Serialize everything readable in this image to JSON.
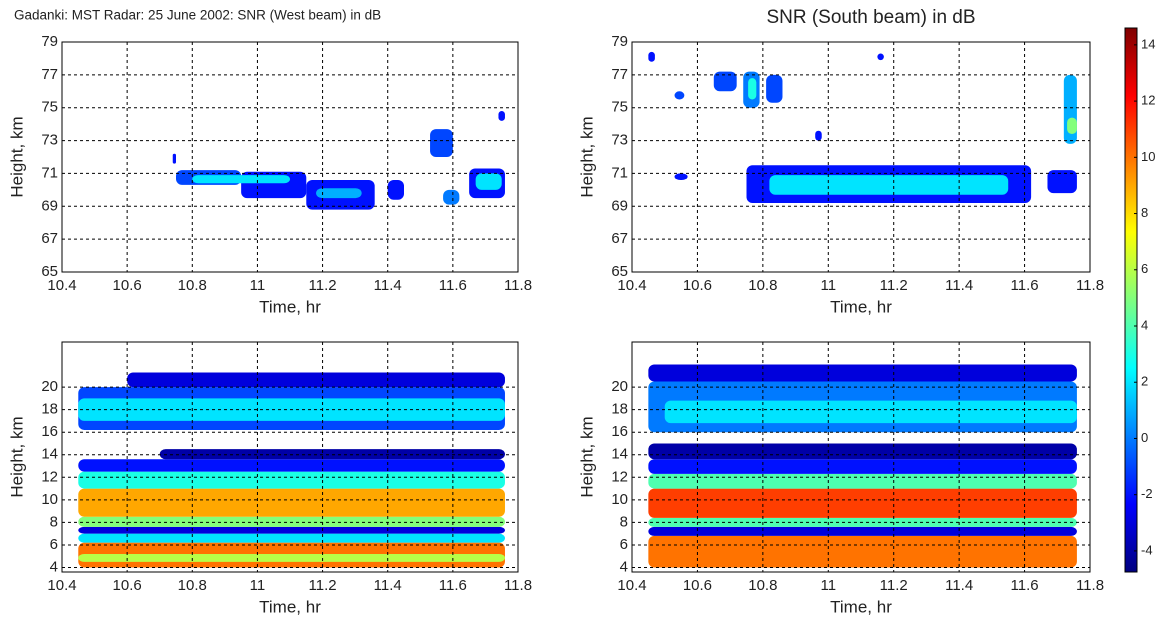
{
  "chart_data": [
    {
      "type": "contour",
      "title": "Gadanki: MST Radar: 25 June 2002: SNR (West beam) in dB",
      "xlabel": "Time, hr",
      "ylabel": "Height, km",
      "xlim": [
        10.4,
        11.8
      ],
      "xticks": [
        10.4,
        10.6,
        10.8,
        11,
        11.2,
        11.4,
        11.6,
        11.8
      ],
      "ylim": [
        65,
        79
      ],
      "yticks": [
        65,
        67,
        69,
        71,
        73,
        75,
        77,
        79
      ],
      "grid": true,
      "regions": [
        {
          "x": [
            10.74,
            10.75
          ],
          "y": [
            71.6,
            72.2
          ],
          "snr": -2
        },
        {
          "x": [
            10.75,
            10.95
          ],
          "y": [
            70.3,
            71.2
          ],
          "snr": -1
        },
        {
          "x": [
            10.95,
            11.15
          ],
          "y": [
            69.5,
            71.1
          ],
          "snr": -2
        },
        {
          "x": [
            11.15,
            11.36
          ],
          "y": [
            68.8,
            70.6
          ],
          "snr": -2
        },
        {
          "x": [
            10.8,
            11.1
          ],
          "y": [
            70.4,
            70.9
          ],
          "snr": 2
        },
        {
          "x": [
            11.18,
            11.32
          ],
          "y": [
            69.5,
            70.1
          ],
          "snr": 1
        },
        {
          "x": [
            11.4,
            11.45
          ],
          "y": [
            69.4,
            70.6
          ],
          "snr": -2
        },
        {
          "x": [
            11.53,
            11.6
          ],
          "y": [
            72,
            73.7
          ],
          "snr": -1
        },
        {
          "x": [
            11.57,
            11.62
          ],
          "y": [
            69.1,
            70
          ],
          "snr": 0
        },
        {
          "x": [
            11.65,
            11.76
          ],
          "y": [
            69.5,
            71.3
          ],
          "snr": -2
        },
        {
          "x": [
            11.67,
            11.75
          ],
          "y": [
            70,
            71
          ],
          "snr": 2
        },
        {
          "x": [
            11.74,
            11.76
          ],
          "y": [
            74.2,
            74.8
          ],
          "snr": -2
        }
      ]
    },
    {
      "type": "contour",
      "title": "SNR (South beam) in dB",
      "xlabel": "Time, hr",
      "ylabel": "Height, km",
      "xlim": [
        10.4,
        11.8
      ],
      "xticks": [
        10.4,
        10.6,
        10.8,
        11,
        11.2,
        11.4,
        11.6,
        11.8
      ],
      "ylim": [
        65,
        79
      ],
      "yticks": [
        65,
        67,
        69,
        71,
        73,
        75,
        77,
        79
      ],
      "grid": true,
      "regions": [
        {
          "x": [
            10.45,
            10.47
          ],
          "y": [
            77.8,
            78.4
          ],
          "snr": -2
        },
        {
          "x": [
            10.53,
            10.56
          ],
          "y": [
            75.5,
            76
          ],
          "snr": -1
        },
        {
          "x": [
            10.65,
            10.72
          ],
          "y": [
            76,
            77.2
          ],
          "snr": -1
        },
        {
          "x": [
            10.74,
            10.79
          ],
          "y": [
            75,
            77.2
          ],
          "snr": 0
        },
        {
          "x": [
            10.755,
            10.78
          ],
          "y": [
            75.5,
            76.8
          ],
          "snr": 3
        },
        {
          "x": [
            10.81,
            10.86
          ],
          "y": [
            75.3,
            77
          ],
          "snr": -1
        },
        {
          "x": [
            10.96,
            10.98
          ],
          "y": [
            73,
            73.6
          ],
          "snr": -2
        },
        {
          "x": [
            11.15,
            11.17
          ],
          "y": [
            77.9,
            78.3
          ],
          "snr": -2
        },
        {
          "x": [
            10.53,
            10.57
          ],
          "y": [
            70.6,
            71
          ],
          "snr": -2
        },
        {
          "x": [
            10.75,
            11.62
          ],
          "y": [
            69.2,
            71.5
          ],
          "snr": -2
        },
        {
          "x": [
            10.82,
            11.55
          ],
          "y": [
            69.7,
            70.9
          ],
          "snr": 2
        },
        {
          "x": [
            11.67,
            11.76
          ],
          "y": [
            69.8,
            71.2
          ],
          "snr": -2
        },
        {
          "x": [
            11.72,
            11.76
          ],
          "y": [
            72.8,
            77
          ],
          "snr": 1
        },
        {
          "x": [
            11.73,
            11.76
          ],
          "y": [
            73.4,
            74.4
          ],
          "snr": 5
        }
      ]
    },
    {
      "type": "contour",
      "xlabel": "Time, hr",
      "ylabel": "Height, km",
      "xlim": [
        10.4,
        11.8
      ],
      "xticks": [
        10.4,
        10.6,
        10.8,
        11,
        11.2,
        11.4,
        11.6,
        11.8
      ],
      "ylim": [
        3.6,
        24
      ],
      "yticks": [
        4,
        6,
        8,
        10,
        12,
        14,
        16,
        18,
        20
      ],
      "grid": true,
      "regions": [
        {
          "x": [
            10.45,
            11.76
          ],
          "y": [
            4,
            6.2
          ],
          "snr": 10
        },
        {
          "x": [
            10.45,
            11.76
          ],
          "y": [
            4.5,
            5.2
          ],
          "snr": 6
        },
        {
          "x": [
            10.45,
            11.76
          ],
          "y": [
            6.2,
            7
          ],
          "snr": 2
        },
        {
          "x": [
            10.45,
            11.76
          ],
          "y": [
            7,
            7.6
          ],
          "snr": -3
        },
        {
          "x": [
            10.45,
            11.76
          ],
          "y": [
            7.6,
            8.5
          ],
          "snr": 5
        },
        {
          "x": [
            10.45,
            11.76
          ],
          "y": [
            8.5,
            11
          ],
          "snr": 9
        },
        {
          "x": [
            10.45,
            11.76
          ],
          "y": [
            11,
            12.5
          ],
          "snr": 3
        },
        {
          "x": [
            10.45,
            11.76
          ],
          "y": [
            12.5,
            13.6
          ],
          "snr": -2
        },
        {
          "x": [
            10.7,
            11.76
          ],
          "y": [
            13.6,
            14.5
          ],
          "snr": -4
        },
        {
          "x": [
            10.45,
            11.76
          ],
          "y": [
            16.2,
            20
          ],
          "snr": -1
        },
        {
          "x": [
            10.45,
            11.76
          ],
          "y": [
            17,
            19
          ],
          "snr": 2
        },
        {
          "x": [
            10.6,
            11.76
          ],
          "y": [
            20,
            21.3
          ],
          "snr": -3
        }
      ]
    },
    {
      "type": "contour",
      "xlabel": "Time, hr",
      "ylabel": "Height, km",
      "xlim": [
        10.4,
        11.8
      ],
      "xticks": [
        10.4,
        10.6,
        10.8,
        11,
        11.2,
        11.4,
        11.6,
        11.8
      ],
      "ylim": [
        3.6,
        24
      ],
      "yticks": [
        4,
        6,
        8,
        10,
        12,
        14,
        16,
        18,
        20
      ],
      "grid": true,
      "regions": [
        {
          "x": [
            10.45,
            11.76
          ],
          "y": [
            4,
            6.8
          ],
          "snr": 10
        },
        {
          "x": [
            10.45,
            11.76
          ],
          "y": [
            6.8,
            7.6
          ],
          "snr": -3
        },
        {
          "x": [
            10.45,
            11.76
          ],
          "y": [
            7.6,
            8.4
          ],
          "snr": 4
        },
        {
          "x": [
            10.45,
            11.76
          ],
          "y": [
            8.4,
            11
          ],
          "snr": 11
        },
        {
          "x": [
            10.45,
            11.76
          ],
          "y": [
            11,
            12.3
          ],
          "snr": 4
        },
        {
          "x": [
            10.45,
            11.76
          ],
          "y": [
            12.3,
            13.6
          ],
          "snr": -2
        },
        {
          "x": [
            10.45,
            11.76
          ],
          "y": [
            13.6,
            15
          ],
          "snr": -4
        },
        {
          "x": [
            10.45,
            11.76
          ],
          "y": [
            16,
            20.5
          ],
          "snr": 0
        },
        {
          "x": [
            10.5,
            11.76
          ],
          "y": [
            16.8,
            18.8
          ],
          "snr": 2
        },
        {
          "x": [
            10.45,
            11.76
          ],
          "y": [
            20.5,
            22
          ],
          "snr": -3
        }
      ]
    },
    {
      "type": "colorbar",
      "clim": [
        -4.75,
        14.6
      ],
      "ticks": [
        -4,
        -2,
        0,
        2,
        4,
        6,
        8,
        10,
        12,
        14
      ],
      "colormap": [
        "#00007f",
        "#0000ff",
        "#007fff",
        "#00ffff",
        "#7fff7f",
        "#ffff00",
        "#ff7f00",
        "#ff0000",
        "#7f0000"
      ]
    }
  ]
}
